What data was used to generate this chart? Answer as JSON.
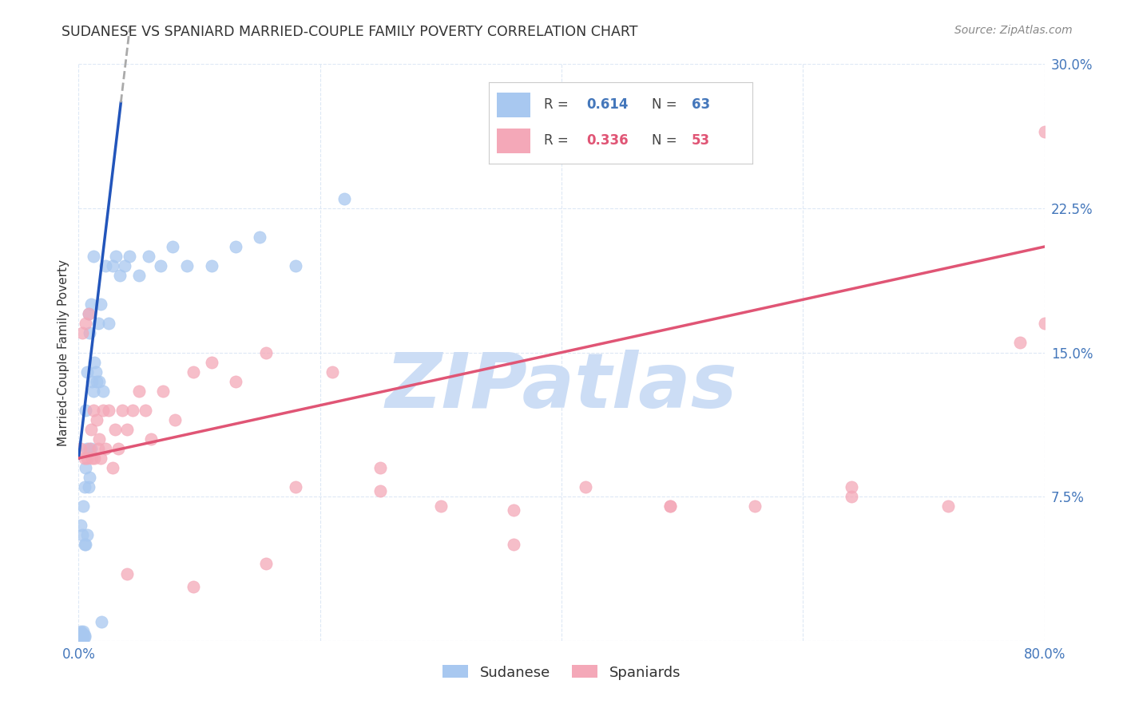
{
  "title": "SUDANESE VS SPANIARD MARRIED-COUPLE FAMILY POVERTY CORRELATION CHART",
  "source": "Source: ZipAtlas.com",
  "ylabel": "Married-Couple Family Poverty",
  "xlim": [
    0.0,
    0.8
  ],
  "ylim": [
    0.0,
    0.3
  ],
  "xtick_vals": [
    0.0,
    0.2,
    0.4,
    0.6,
    0.8
  ],
  "xtick_labels": [
    "0.0%",
    "",
    "",
    "",
    "80.0%"
  ],
  "ytick_vals": [
    0.0,
    0.075,
    0.15,
    0.225,
    0.3
  ],
  "ytick_labels": [
    "",
    "7.5%",
    "15.0%",
    "22.5%",
    "30.0%"
  ],
  "sudanese_R": "0.614",
  "sudanese_N": "63",
  "spaniard_R": "0.336",
  "spaniard_N": "53",
  "sudanese_color": "#a8c8f0",
  "spaniard_color": "#f4a8b8",
  "sudanese_line_color": "#2255bb",
  "spaniard_line_color": "#e05575",
  "watermark": "ZIPatlas",
  "watermark_color": "#ccddf5",
  "background_color": "#ffffff",
  "title_color": "#333333",
  "source_color": "#888888",
  "axis_label_color": "#333333",
  "tick_color": "#4477bb",
  "grid_color": "#dde8f5",
  "legend_border_color": "#cccccc",
  "sudanese_x": [
    0.001,
    0.001,
    0.001,
    0.001,
    0.002,
    0.002,
    0.002,
    0.002,
    0.002,
    0.002,
    0.003,
    0.003,
    0.003,
    0.003,
    0.003,
    0.004,
    0.004,
    0.004,
    0.004,
    0.005,
    0.005,
    0.005,
    0.005,
    0.006,
    0.006,
    0.006,
    0.007,
    0.007,
    0.007,
    0.008,
    0.008,
    0.009,
    0.009,
    0.01,
    0.01,
    0.011,
    0.012,
    0.012,
    0.013,
    0.014,
    0.015,
    0.016,
    0.017,
    0.018,
    0.019,
    0.02,
    0.022,
    0.025,
    0.028,
    0.031,
    0.034,
    0.038,
    0.042,
    0.05,
    0.058,
    0.068,
    0.078,
    0.09,
    0.11,
    0.13,
    0.15,
    0.18,
    0.22
  ],
  "sudanese_y": [
    0.001,
    0.002,
    0.002,
    0.003,
    0.001,
    0.002,
    0.003,
    0.004,
    0.005,
    0.06,
    0.001,
    0.002,
    0.003,
    0.004,
    0.055,
    0.001,
    0.003,
    0.005,
    0.07,
    0.002,
    0.003,
    0.05,
    0.08,
    0.05,
    0.09,
    0.12,
    0.055,
    0.1,
    0.14,
    0.08,
    0.17,
    0.085,
    0.16,
    0.1,
    0.175,
    0.135,
    0.13,
    0.2,
    0.145,
    0.14,
    0.135,
    0.165,
    0.135,
    0.175,
    0.01,
    0.13,
    0.195,
    0.165,
    0.195,
    0.2,
    0.19,
    0.195,
    0.2,
    0.19,
    0.2,
    0.195,
    0.205,
    0.195,
    0.195,
    0.205,
    0.21,
    0.195,
    0.23
  ],
  "spaniard_x": [
    0.002,
    0.003,
    0.005,
    0.006,
    0.007,
    0.008,
    0.009,
    0.01,
    0.011,
    0.012,
    0.013,
    0.015,
    0.016,
    0.017,
    0.018,
    0.02,
    0.022,
    0.025,
    0.028,
    0.03,
    0.033,
    0.036,
    0.04,
    0.045,
    0.05,
    0.055,
    0.06,
    0.07,
    0.08,
    0.095,
    0.11,
    0.13,
    0.155,
    0.18,
    0.21,
    0.25,
    0.3,
    0.36,
    0.42,
    0.49,
    0.56,
    0.64,
    0.72,
    0.78,
    0.8,
    0.8,
    0.64,
    0.49,
    0.36,
    0.25,
    0.155,
    0.095,
    0.04
  ],
  "spaniard_y": [
    0.1,
    0.16,
    0.095,
    0.165,
    0.095,
    0.17,
    0.1,
    0.11,
    0.095,
    0.12,
    0.095,
    0.115,
    0.1,
    0.105,
    0.095,
    0.12,
    0.1,
    0.12,
    0.09,
    0.11,
    0.1,
    0.12,
    0.11,
    0.12,
    0.13,
    0.12,
    0.105,
    0.13,
    0.115,
    0.14,
    0.145,
    0.135,
    0.15,
    0.08,
    0.14,
    0.09,
    0.07,
    0.05,
    0.08,
    0.07,
    0.07,
    0.075,
    0.07,
    0.155,
    0.265,
    0.165,
    0.08,
    0.07,
    0.068,
    0.078,
    0.04,
    0.028,
    0.035
  ],
  "sudanese_line_x": [
    0.0,
    0.035
  ],
  "sudanese_line_y": [
    0.095,
    0.28
  ],
  "spaniard_line_x": [
    0.0,
    0.8
  ],
  "spaniard_line_y": [
    0.095,
    0.205
  ]
}
